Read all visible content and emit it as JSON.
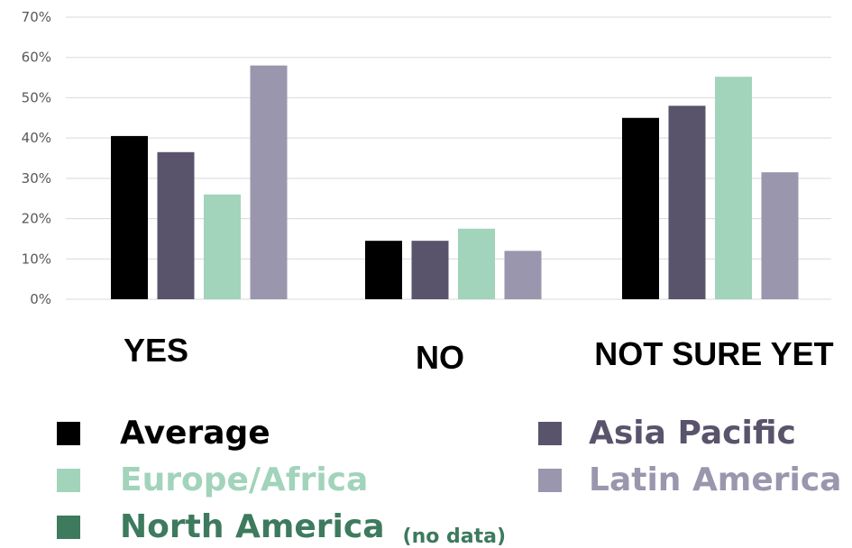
{
  "chart_data": {
    "type": "bar",
    "categories": [
      "YES",
      "NO",
      "NOT SURE YET"
    ],
    "series": [
      {
        "name": "Average",
        "color": "#000000",
        "values": [
          40.5,
          14.5,
          45.0
        ]
      },
      {
        "name": "Asia Pacific",
        "color": "#5a536c",
        "values": [
          36.5,
          14.5,
          48.0
        ]
      },
      {
        "name": "Europe/Africa",
        "color": "#a2d3bb",
        "values": [
          26.0,
          17.5,
          55.2
        ]
      },
      {
        "name": "Latin America",
        "color": "#9a96ae",
        "values": [
          58.0,
          12.0,
          31.5
        ]
      }
    ],
    "ylim": [
      0,
      70
    ],
    "yticks": [
      "0%",
      "10%",
      "20%",
      "30%",
      "40%",
      "50%",
      "60%",
      "70%"
    ],
    "grid": true,
    "legend": {
      "placement": "bottom",
      "items": [
        {
          "name": "Average",
          "color": "#000000"
        },
        {
          "name": "Asia Pacific",
          "color": "#5a536c"
        },
        {
          "name": "Europe/Africa",
          "color": "#a2d3bb"
        },
        {
          "name": "Latin America",
          "color": "#9a96ae"
        },
        {
          "name": "North America",
          "color": "#3d7a5e",
          "note": "(no data)"
        }
      ]
    }
  }
}
